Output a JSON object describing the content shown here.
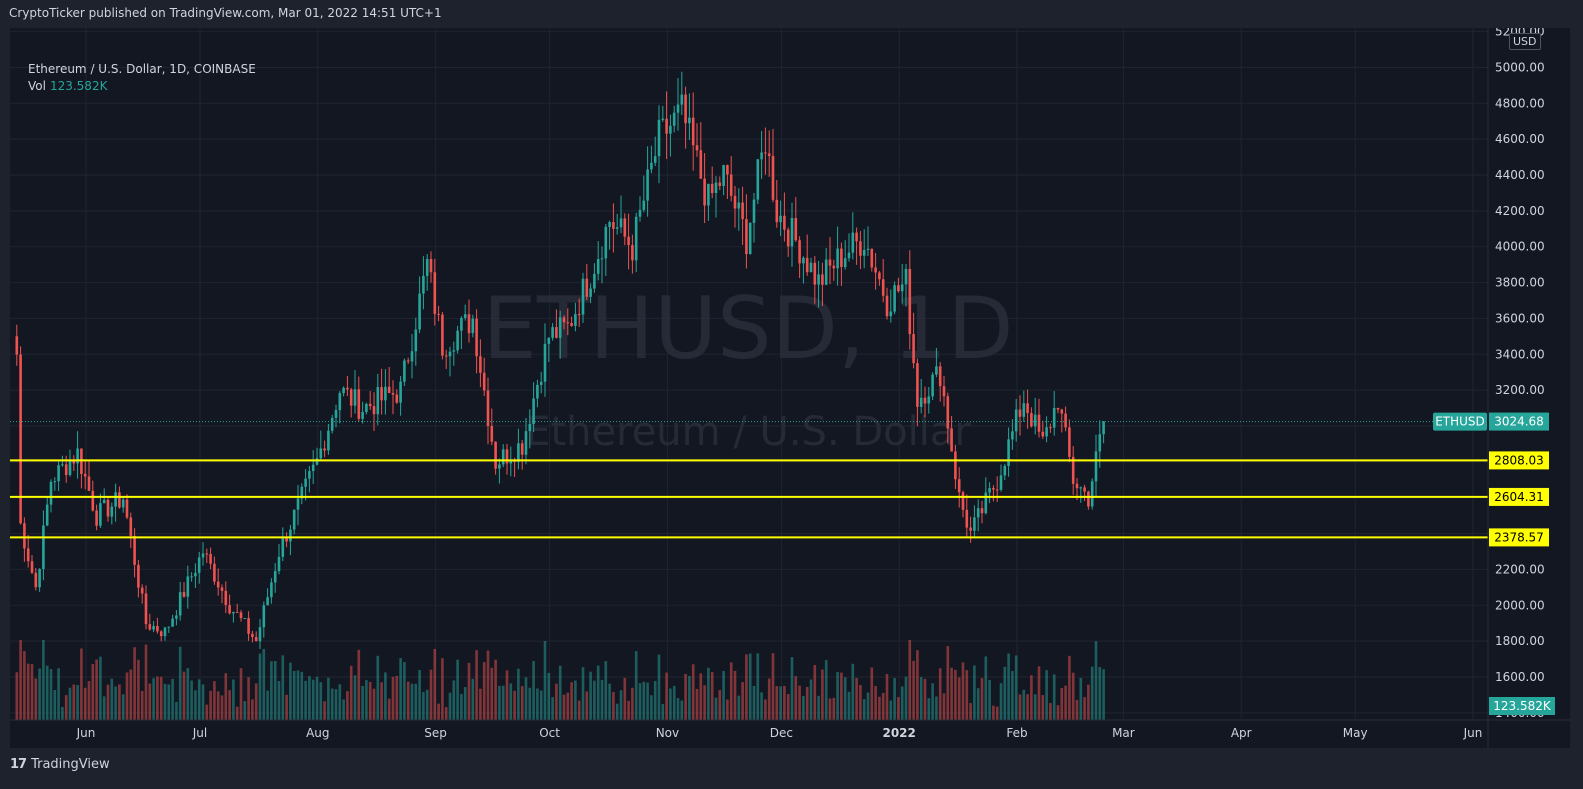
{
  "header": {
    "published_text": "CryptoTicker published on TradingView.com, Mar 01, 2022 14:51 UTC+1"
  },
  "legend": {
    "symbol_line": "Ethereum / U.S. Dollar, 1D, COINBASE",
    "vol_label": "Vol",
    "vol_value": "123.582K"
  },
  "watermark": {
    "symbol": "ETHUSD, 1D",
    "description": "Ethereum / U.S. Dollar"
  },
  "footer": {
    "brand": "TradingView",
    "brand_mark": "17"
  },
  "currency_label": "USD",
  "colors": {
    "up": "#26a69a",
    "down": "#ef5350",
    "level_line": "#ffff00",
    "background": "#131722",
    "grid": "#1f2430"
  },
  "chart_data": {
    "type": "candlestick",
    "symbol": "ETHUSD",
    "timeframe": "1D",
    "x_tick_labels": [
      "Jun",
      "Jul",
      "Aug",
      "Sep",
      "Oct",
      "Nov",
      "Dec",
      "2022",
      "Feb",
      "Mar",
      "Apr",
      "May",
      "Jun"
    ],
    "y_tick_labels": [
      "1400.00",
      "1600.00",
      "1800.00",
      "2000.00",
      "2200.00",
      "2400.00",
      "2600.00",
      "2800.00",
      "3000.00",
      "3200.00",
      "3400.00",
      "3600.00",
      "3800.00",
      "4000.00",
      "4200.00",
      "4400.00",
      "4600.00",
      "4800.00",
      "5000.00",
      "5200.00"
    ],
    "ylim": [
      1360,
      5220
    ],
    "last_price": 3024.68,
    "last_price_label": "ETHUSD",
    "volume_last_label": "123.582K",
    "horizontal_levels": [
      2808.03,
      2604.31,
      2378.57
    ],
    "price_path": [
      {
        "date": "2021-05-18",
        "close": 3400
      },
      {
        "date": "2021-05-19",
        "close": 2450
      },
      {
        "date": "2021-05-23",
        "close": 2100
      },
      {
        "date": "2021-05-27",
        "close": 2700
      },
      {
        "date": "2021-06-03",
        "close": 2850
      },
      {
        "date": "2021-06-08",
        "close": 2500
      },
      {
        "date": "2021-06-15",
        "close": 2600
      },
      {
        "date": "2021-06-21",
        "close": 1900
      },
      {
        "date": "2021-06-26",
        "close": 1850
      },
      {
        "date": "2021-07-06",
        "close": 2300
      },
      {
        "date": "2021-07-13",
        "close": 2000
      },
      {
        "date": "2021-07-20",
        "close": 1800
      },
      {
        "date": "2021-07-26",
        "close": 2300
      },
      {
        "date": "2021-08-05",
        "close": 2800
      },
      {
        "date": "2021-08-11",
        "close": 3200
      },
      {
        "date": "2021-08-17",
        "close": 3100
      },
      {
        "date": "2021-08-27",
        "close": 3200
      },
      {
        "date": "2021-09-03",
        "close": 3900
      },
      {
        "date": "2021-09-07",
        "close": 3450
      },
      {
        "date": "2021-09-15",
        "close": 3600
      },
      {
        "date": "2021-09-21",
        "close": 2800
      },
      {
        "date": "2021-09-28",
        "close": 2900
      },
      {
        "date": "2021-10-05",
        "close": 3500
      },
      {
        "date": "2021-10-10",
        "close": 3550
      },
      {
        "date": "2021-10-16",
        "close": 3850
      },
      {
        "date": "2021-10-21",
        "close": 4150
      },
      {
        "date": "2021-10-27",
        "close": 4000
      },
      {
        "date": "2021-11-03",
        "close": 4600
      },
      {
        "date": "2021-11-09",
        "close": 4750
      },
      {
        "date": "2021-11-16",
        "close": 4250
      },
      {
        "date": "2021-11-20",
        "close": 4400
      },
      {
        "date": "2021-11-26",
        "close": 4050
      },
      {
        "date": "2021-12-01",
        "close": 4600
      },
      {
        "date": "2021-12-04",
        "close": 4200
      },
      {
        "date": "2021-12-10",
        "close": 4000
      },
      {
        "date": "2021-12-15",
        "close": 3800
      },
      {
        "date": "2021-12-21",
        "close": 3950
      },
      {
        "date": "2021-12-27",
        "close": 4050
      },
      {
        "date": "2022-01-02",
        "close": 3700
      },
      {
        "date": "2022-01-07",
        "close": 3800
      },
      {
        "date": "2022-01-10",
        "close": 3150
      },
      {
        "date": "2022-01-16",
        "close": 3300
      },
      {
        "date": "2022-01-21",
        "close": 2600
      },
      {
        "date": "2022-01-24",
        "close": 2400
      },
      {
        "date": "2022-01-31",
        "close": 2700
      },
      {
        "date": "2022-02-07",
        "close": 3150
      },
      {
        "date": "2022-02-12",
        "close": 2900
      },
      {
        "date": "2022-02-16",
        "close": 3150
      },
      {
        "date": "2022-02-20",
        "close": 2700
      },
      {
        "date": "2022-02-24",
        "close": 2600
      },
      {
        "date": "2022-02-28",
        "close": 3024.68
      }
    ]
  }
}
